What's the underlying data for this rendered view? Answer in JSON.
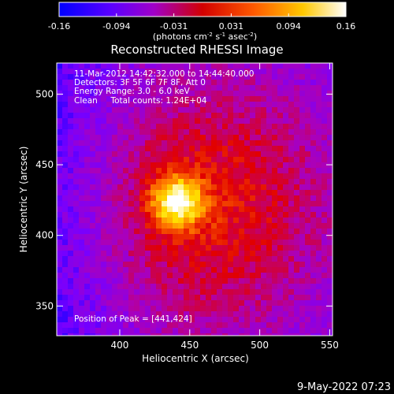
{
  "colorbar": {
    "ticks": [
      "-0.16",
      "-0.094",
      "-0.031",
      "0.031",
      "0.094",
      "0.16"
    ],
    "min": -0.16,
    "max": 0.16,
    "unit_prefix": "(photons cm",
    "unit_exp1": "-2",
    "unit_mid1": " s",
    "unit_exp2": "-1",
    "unit_mid2": " asec",
    "unit_exp3": "-2",
    "unit_suffix": ")"
  },
  "chart_data": {
    "type": "heatmap",
    "title": "Reconstructed RHESSI Image",
    "xlabel": "Heliocentric X (arcsec)",
    "ylabel": "Heliocentric Y (arcsec)",
    "xlim": [
      355,
      552
    ],
    "ylim": [
      329,
      522
    ],
    "xticks": [
      400,
      450,
      500,
      550
    ],
    "yticks": [
      350,
      400,
      450,
      500
    ],
    "annotations": [
      "11-Mar-2012 14:42:32.000 to 14:44:40.000",
      "Detectors: 3F 5F 6F 7F 8F, Att 0",
      "Energy Range: 3.0 - 6.0 keV",
      "Clean     Total counts: 1.24E+04"
    ],
    "peak_label": "Position of Peak = [441,424]",
    "peak": [
      441,
      424
    ],
    "colormap": [
      "#0000ff",
      "#7800ff",
      "#ad00b6",
      "#e10000",
      "#ff7800",
      "#ffe100",
      "#ffffff"
    ]
  },
  "footer": {
    "date": "9-May-2022 07:23"
  }
}
